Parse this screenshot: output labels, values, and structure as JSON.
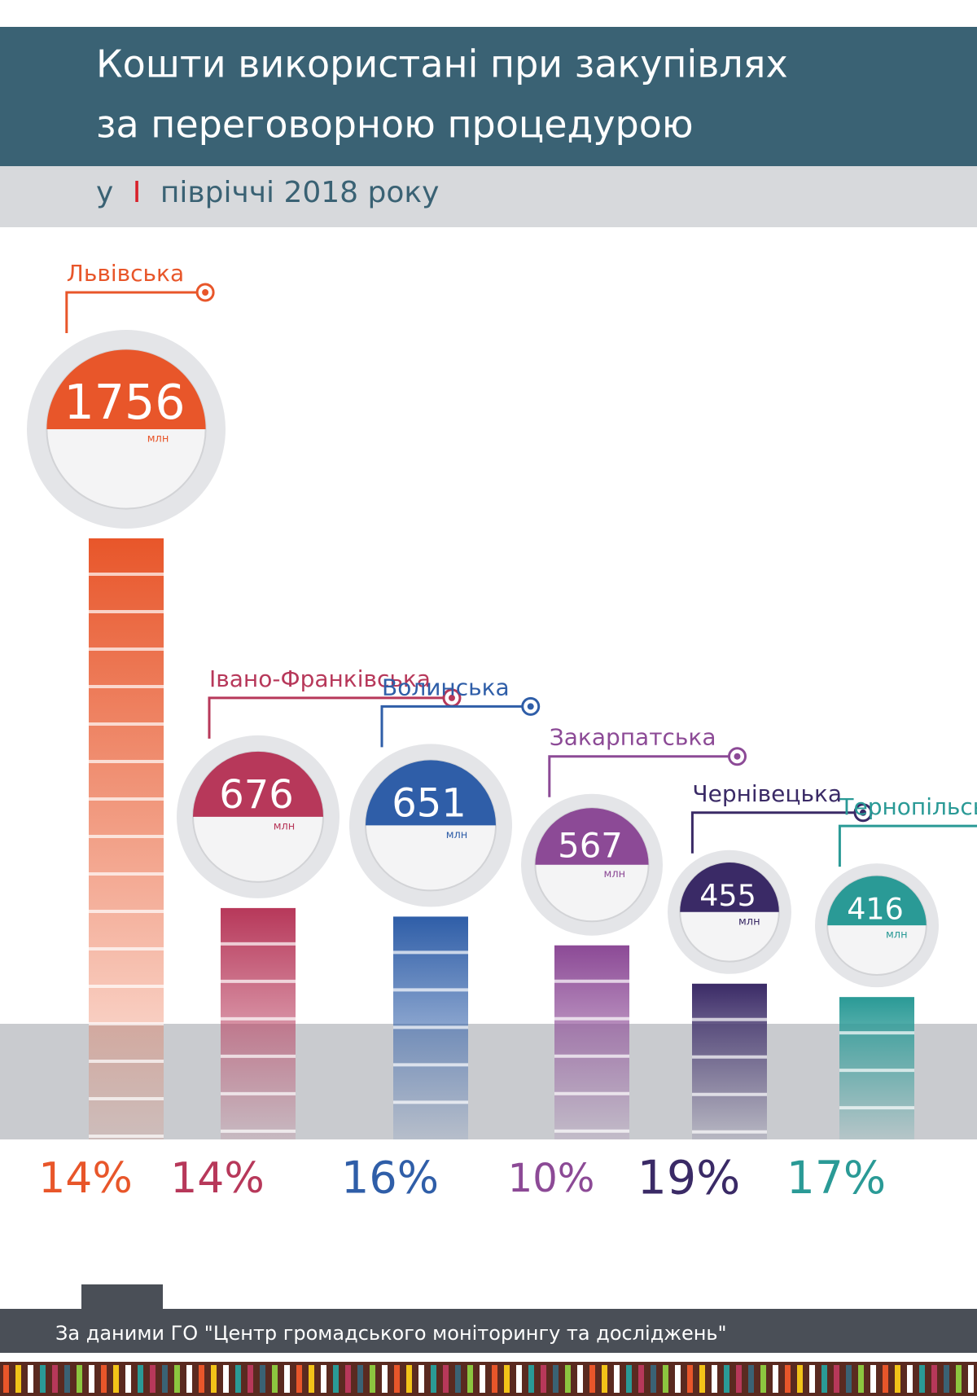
{
  "chart_data": {
    "type": "bar",
    "title": [
      "Кошти використані при закупівлях",
      "за переговорною процедурою"
    ],
    "subtitle": [
      "у",
      "І",
      "півріччі 2018 року"
    ],
    "categories": [
      "Львівська",
      "Івано-Франківська",
      "Волинська",
      "Закарпатська",
      "Чернівецька",
      "Тернопільська"
    ],
    "values": [
      1756,
      676,
      651,
      567,
      455,
      416
    ],
    "unit": "млн",
    "colors": [
      "#e8562a",
      "#b7385a",
      "#2f5ea8",
      "#8c4a96",
      "#3a2a66",
      "#2a9a96"
    ],
    "shares": {
      "values": [
        14,
        14,
        16,
        10,
        19,
        17
      ],
      "value_labels": [
        "14%",
        "14%",
        "16%",
        "10%",
        "19%",
        "17%"
      ]
    },
    "source": "За даними ГО \"Центр громадського моніторингу та досліджень\""
  }
}
